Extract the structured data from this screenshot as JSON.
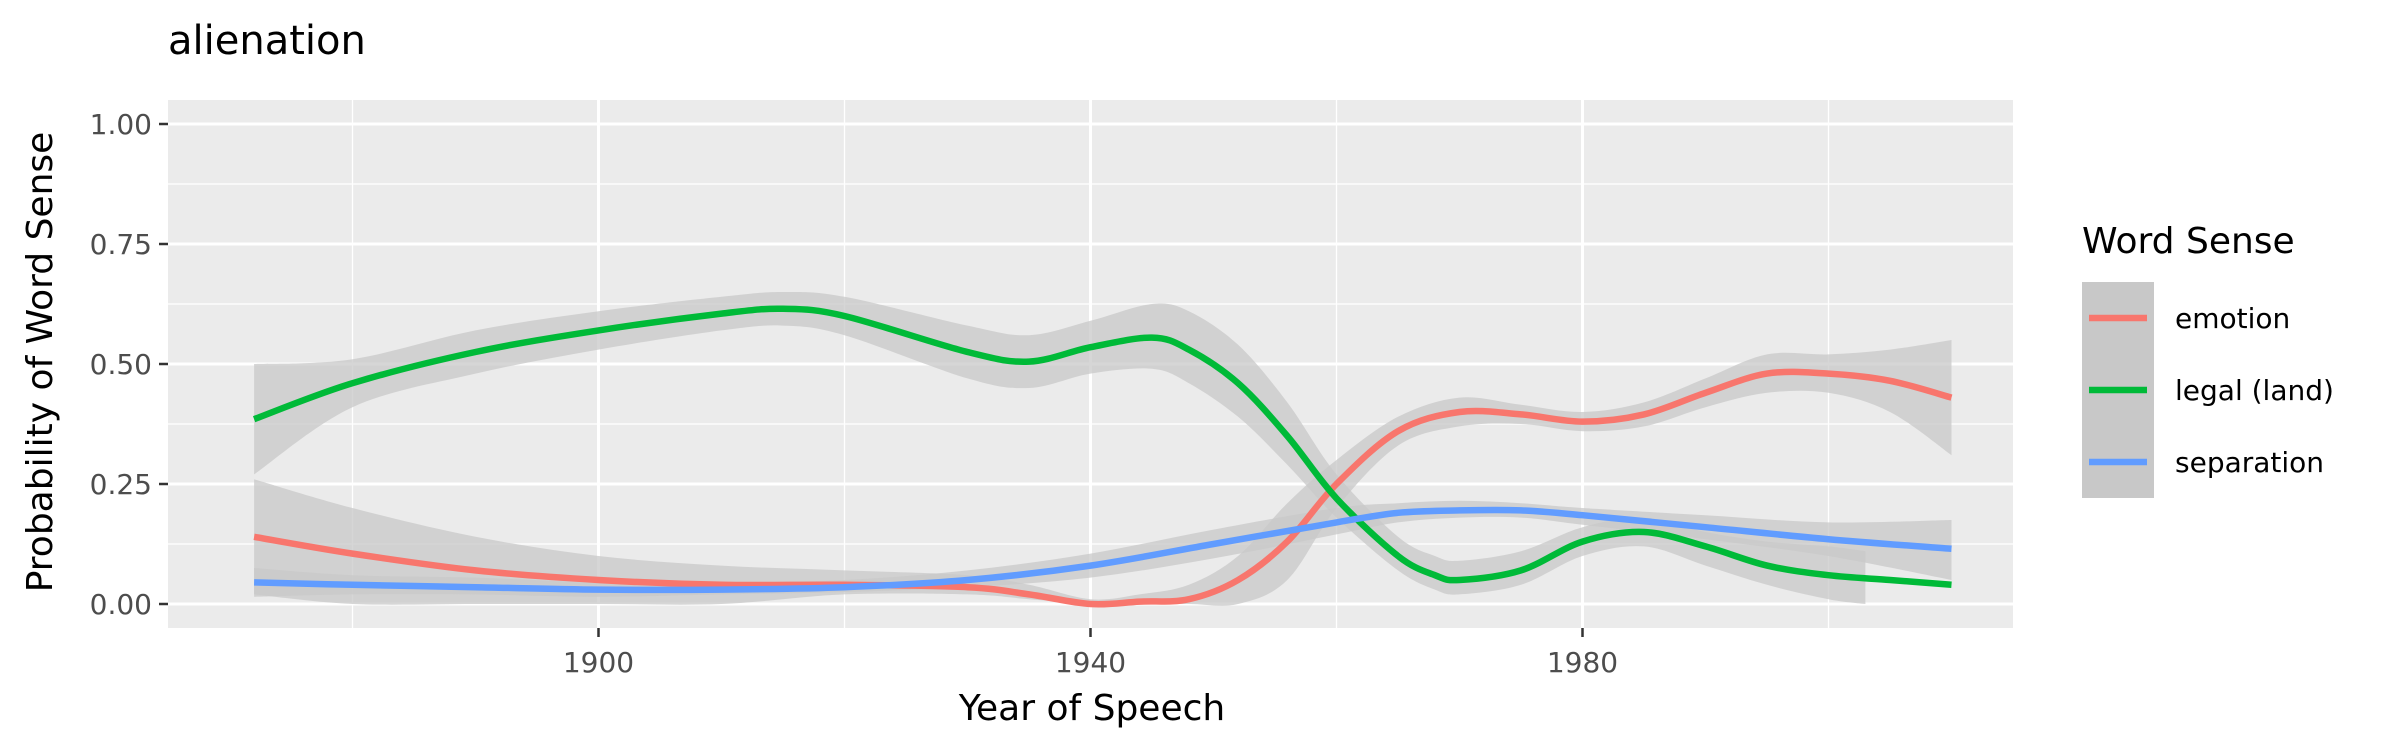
{
  "chart_data": {
    "type": "line",
    "title": "alienation",
    "xlabel": "Year of Speech",
    "ylabel": "Probability of Word Sense",
    "xlim": [
      1865,
      2015
    ],
    "ylim": [
      -0.05,
      1.05
    ],
    "x_ticks": [
      1900,
      1940,
      1980
    ],
    "x_tick_labels": [
      "1900",
      "1940",
      "1980"
    ],
    "y_ticks": [
      0,
      0.25,
      0.5,
      0.75,
      1
    ],
    "y_tick_labels": [
      "0.00",
      "0.25",
      "0.50",
      "0.75",
      "1.00"
    ],
    "grid": true,
    "legend": {
      "title": "Word Sense",
      "position": "right"
    },
    "colors": {
      "panel": "#ebebeb",
      "grid": "#ffffff",
      "ribbon": "#c8c8c8"
    },
    "series": [
      {
        "name": "emotion",
        "color": "#f8766d",
        "x": [
          1872,
          1880,
          1890,
          1900,
          1910,
          1920,
          1930,
          1935,
          1940,
          1944,
          1948,
          1952,
          1956,
          1960,
          1965,
          1970,
          1975,
          1980,
          1985,
          1990,
          1995,
          2000,
          2005,
          2010
        ],
        "y": [
          0.14,
          0.105,
          0.07,
          0.05,
          0.04,
          0.04,
          0.035,
          0.02,
          0.0,
          0.005,
          0.01,
          0.05,
          0.13,
          0.25,
          0.36,
          0.4,
          0.395,
          0.38,
          0.395,
          0.44,
          0.48,
          0.48,
          0.465,
          0.43
        ],
        "ci_x": [
          1872,
          1880,
          1890,
          1900,
          1910,
          1920,
          1930,
          1935,
          1940,
          1944,
          1948,
          1952,
          1956,
          1960,
          1965,
          1970,
          1975,
          1980,
          1985,
          1990,
          1995,
          2000,
          2005,
          2010
        ],
        "ci_lower": [
          0.02,
          0.0,
          0.0,
          0.0,
          0.0,
          0.02,
          0.02,
          0.01,
          0.0,
          0.0,
          0.0,
          0.0,
          0.05,
          0.2,
          0.33,
          0.37,
          0.375,
          0.36,
          0.37,
          0.41,
          0.44,
          0.44,
          0.4,
          0.31
        ],
        "ci_upper": [
          0.26,
          0.2,
          0.14,
          0.1,
          0.08,
          0.07,
          0.06,
          0.04,
          0.01,
          0.02,
          0.04,
          0.1,
          0.21,
          0.3,
          0.39,
          0.43,
          0.415,
          0.4,
          0.42,
          0.47,
          0.52,
          0.52,
          0.53,
          0.55
        ]
      },
      {
        "name": "legal (land)",
        "color": "#00ba38",
        "x": [
          1872,
          1880,
          1890,
          1900,
          1910,
          1915,
          1920,
          1930,
          1935,
          1940,
          1945,
          1948,
          1952,
          1956,
          1960,
          1965,
          1968,
          1970,
          1975,
          1980,
          1985,
          1990,
          1995,
          2000,
          2005,
          2010
        ],
        "y": [
          0.385,
          0.46,
          0.525,
          0.57,
          0.605,
          0.615,
          0.6,
          0.525,
          0.505,
          0.535,
          0.555,
          0.53,
          0.46,
          0.35,
          0.22,
          0.1,
          0.06,
          0.05,
          0.07,
          0.13,
          0.15,
          0.12,
          0.08,
          0.06,
          0.05,
          0.04
        ],
        "ci_x": [
          1872,
          1880,
          1890,
          1900,
          1910,
          1915,
          1920,
          1930,
          1935,
          1940,
          1945,
          1948,
          1952,
          1956,
          1960,
          1965,
          1968,
          1970,
          1975,
          1980,
          1985,
          1990,
          1995,
          2000,
          2003
        ],
        "ci_lower": [
          0.27,
          0.41,
          0.48,
          0.53,
          0.57,
          0.58,
          0.56,
          0.47,
          0.45,
          0.48,
          0.49,
          0.46,
          0.39,
          0.29,
          0.18,
          0.07,
          0.03,
          0.02,
          0.04,
          0.1,
          0.12,
          0.08,
          0.04,
          0.01,
          0.0
        ],
        "ci_upper": [
          0.5,
          0.51,
          0.57,
          0.61,
          0.64,
          0.65,
          0.64,
          0.58,
          0.56,
          0.59,
          0.625,
          0.61,
          0.54,
          0.42,
          0.27,
          0.14,
          0.1,
          0.09,
          0.11,
          0.16,
          0.18,
          0.15,
          0.13,
          0.12,
          0.11
        ]
      },
      {
        "name": "separation",
        "color": "#619cff",
        "x": [
          1872,
          1880,
          1890,
          1900,
          1910,
          1920,
          1930,
          1940,
          1950,
          1960,
          1965,
          1970,
          1975,
          1980,
          1990,
          2000,
          2010
        ],
        "y": [
          0.045,
          0.04,
          0.035,
          0.03,
          0.03,
          0.035,
          0.05,
          0.08,
          0.125,
          0.17,
          0.19,
          0.195,
          0.195,
          0.185,
          0.16,
          0.135,
          0.115
        ],
        "ci_x": [
          1872,
          1880,
          1890,
          1900,
          1910,
          1920,
          1930,
          1940,
          1950,
          1960,
          1965,
          1970,
          1975,
          1980,
          1990,
          2000,
          2010
        ],
        "ci_lower": [
          0.015,
          0.02,
          0.02,
          0.015,
          0.02,
          0.025,
          0.035,
          0.055,
          0.095,
          0.145,
          0.17,
          0.18,
          0.18,
          0.165,
          0.135,
          0.1,
          0.05
        ],
        "ci_upper": [
          0.075,
          0.06,
          0.055,
          0.045,
          0.045,
          0.05,
          0.07,
          0.105,
          0.155,
          0.2,
          0.21,
          0.215,
          0.21,
          0.2,
          0.185,
          0.17,
          0.175
        ]
      }
    ]
  }
}
